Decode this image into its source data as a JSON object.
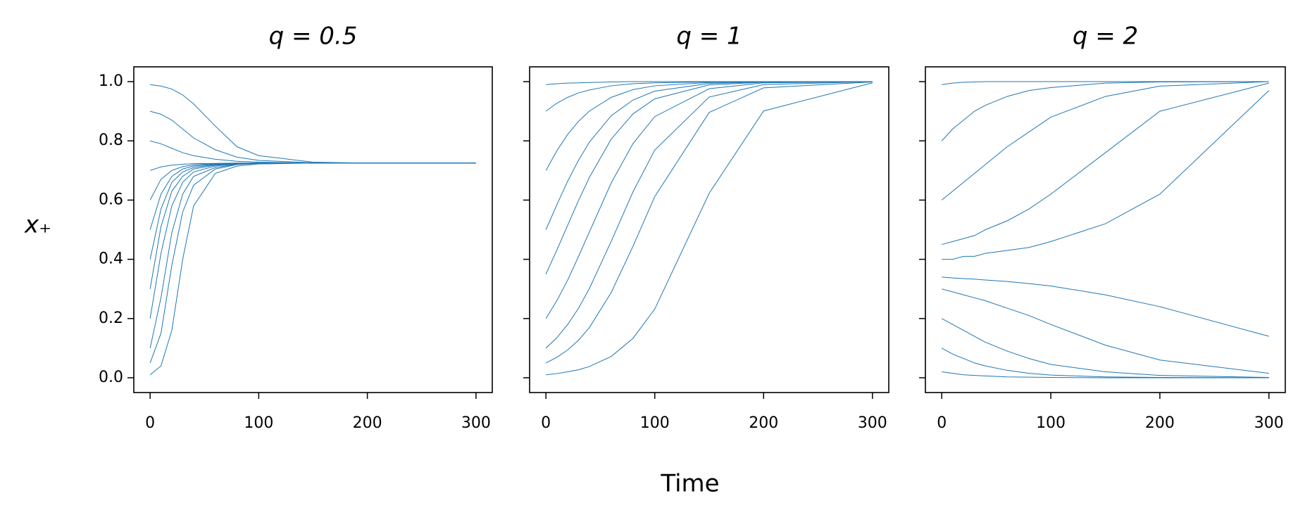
{
  "xlabel": "Time",
  "ylabel": "x₊",
  "chart_data": [
    {
      "type": "line",
      "title": "q = 0.5",
      "color": "#1f77b4",
      "x": [
        0,
        10,
        20,
        30,
        40,
        60,
        80,
        100,
        150,
        200,
        300
      ],
      "xlim": [
        -15,
        315
      ],
      "xticks": [
        0,
        100,
        200,
        300
      ],
      "ylim": [
        -0.05,
        1.05
      ],
      "yticks": [
        {
          "value": 0,
          "label": "0.0"
        },
        0.2,
        0.4,
        0.6,
        0.8,
        {
          "value": 1,
          "label": "1.0"
        }
      ],
      "series": [
        {
          "values": [
            0.01,
            0.04,
            0.16,
            0.4,
            0.58,
            0.69,
            0.715,
            0.722,
            0.725,
            0.725,
            0.725
          ]
        },
        {
          "values": [
            0.05,
            0.15,
            0.38,
            0.56,
            0.65,
            0.705,
            0.72,
            0.724,
            0.725,
            0.725,
            0.725
          ]
        },
        {
          "values": [
            0.1,
            0.27,
            0.49,
            0.62,
            0.68,
            0.71,
            0.721,
            0.724,
            0.725,
            0.725,
            0.725
          ]
        },
        {
          "values": [
            0.2,
            0.42,
            0.58,
            0.66,
            0.695,
            0.715,
            0.722,
            0.724,
            0.725,
            0.725,
            0.725
          ]
        },
        {
          "values": [
            0.3,
            0.51,
            0.63,
            0.68,
            0.705,
            0.718,
            0.723,
            0.724,
            0.725,
            0.725,
            0.725
          ]
        },
        {
          "values": [
            0.4,
            0.57,
            0.66,
            0.695,
            0.71,
            0.72,
            0.723,
            0.724,
            0.725,
            0.725,
            0.725
          ]
        },
        {
          "values": [
            0.5,
            0.62,
            0.68,
            0.705,
            0.715,
            0.721,
            0.724,
            0.725,
            0.725,
            0.725,
            0.725
          ]
        },
        {
          "values": [
            0.6,
            0.67,
            0.7,
            0.713,
            0.719,
            0.723,
            0.724,
            0.725,
            0.725,
            0.725,
            0.725
          ]
        },
        {
          "values": [
            0.7,
            0.712,
            0.718,
            0.721,
            0.723,
            0.724,
            0.725,
            0.725,
            0.725,
            0.725,
            0.725
          ]
        },
        {
          "values": [
            0.8,
            0.79,
            0.775,
            0.76,
            0.75,
            0.738,
            0.731,
            0.728,
            0.725,
            0.725,
            0.725
          ]
        },
        {
          "values": [
            0.9,
            0.89,
            0.87,
            0.84,
            0.81,
            0.77,
            0.745,
            0.734,
            0.726,
            0.725,
            0.725
          ]
        },
        {
          "values": [
            0.99,
            0.985,
            0.975,
            0.955,
            0.925,
            0.85,
            0.78,
            0.75,
            0.728,
            0.725,
            0.725
          ]
        }
      ]
    },
    {
      "type": "line",
      "title": "q = 1",
      "color": "#1f77b4",
      "x": [
        0,
        10,
        20,
        30,
        40,
        60,
        80,
        100,
        150,
        200,
        300
      ],
      "xlim": [
        -15,
        315
      ],
      "xticks": [
        0,
        100,
        200,
        300
      ],
      "ylim": [
        -0.05,
        1.05
      ],
      "series": [
        {
          "values": [
            0.01,
            0.014,
            0.02,
            0.027,
            0.038,
            0.072,
            0.133,
            0.232,
            0.623,
            0.901,
            0.996
          ]
        },
        {
          "values": [
            0.05,
            0.069,
            0.094,
            0.127,
            0.17,
            0.288,
            0.444,
            0.612,
            0.896,
            0.979,
            0.999
          ]
        },
        {
          "values": [
            0.1,
            0.135,
            0.18,
            0.235,
            0.302,
            0.461,
            0.628,
            0.769,
            0.948,
            0.99,
            1
          ]
        },
        {
          "values": [
            0.2,
            0.26,
            0.33,
            0.41,
            0.493,
            0.658,
            0.791,
            0.882,
            0.976,
            0.996,
            1
          ]
        },
        {
          "values": [
            0.35,
            0.431,
            0.515,
            0.599,
            0.677,
            0.806,
            0.891,
            0.942,
            0.989,
            0.998,
            1
          ]
        },
        {
          "values": [
            0.5,
            0.584,
            0.664,
            0.735,
            0.796,
            0.885,
            0.938,
            0.968,
            0.994,
            0.999,
            1
          ]
        },
        {
          "values": [
            0.7,
            0.766,
            0.822,
            0.866,
            0.901,
            0.947,
            0.973,
            0.986,
            0.997,
            1,
            1
          ]
        },
        {
          "values": [
            0.9,
            0.927,
            0.947,
            0.962,
            0.972,
            0.986,
            0.993,
            0.996,
            0.999,
            1,
            1
          ]
        },
        {
          "values": [
            0.99,
            0.993,
            0.995,
            0.996,
            0.997,
            0.999,
            1,
            1,
            1,
            1,
            1
          ]
        }
      ]
    },
    {
      "type": "line",
      "title": "q = 2",
      "color": "#1f77b4",
      "x": [
        0,
        10,
        20,
        30,
        40,
        60,
        80,
        100,
        150,
        200,
        300
      ],
      "xlim": [
        -15,
        315
      ],
      "xticks": [
        0,
        100,
        200,
        300
      ],
      "ylim": [
        -0.05,
        1.05
      ],
      "series": [
        {
          "values": [
            0.99,
            0.995,
            0.998,
            0.999,
            1,
            1,
            1,
            1,
            1,
            1,
            1
          ]
        },
        {
          "values": [
            0.8,
            0.84,
            0.87,
            0.9,
            0.92,
            0.95,
            0.97,
            0.98,
            0.995,
            0.999,
            1
          ]
        },
        {
          "values": [
            0.6,
            0.63,
            0.66,
            0.69,
            0.72,
            0.78,
            0.83,
            0.88,
            0.95,
            0.985,
            1
          ]
        },
        {
          "values": [
            0.45,
            0.46,
            0.47,
            0.48,
            0.5,
            0.53,
            0.57,
            0.62,
            0.76,
            0.9,
            0.995
          ]
        },
        {
          "values": [
            0.4,
            0.4,
            0.41,
            0.41,
            0.42,
            0.43,
            0.44,
            0.46,
            0.52,
            0.62,
            0.97
          ]
        },
        {
          "values": [
            0.34,
            0.337,
            0.335,
            0.333,
            0.33,
            0.325,
            0.318,
            0.31,
            0.28,
            0.24,
            0.14
          ]
        },
        {
          "values": [
            0.3,
            0.29,
            0.28,
            0.27,
            0.26,
            0.235,
            0.21,
            0.18,
            0.11,
            0.06,
            0.015
          ]
        },
        {
          "values": [
            0.2,
            0.18,
            0.16,
            0.14,
            0.12,
            0.09,
            0.065,
            0.045,
            0.02,
            0.008,
            0.001
          ]
        },
        {
          "values": [
            0.1,
            0.08,
            0.065,
            0.05,
            0.04,
            0.025,
            0.015,
            0.009,
            0.003,
            0.001,
            0
          ]
        },
        {
          "values": [
            0.02,
            0.015,
            0.01,
            0.008,
            0.006,
            0.003,
            0.002,
            0.001,
            0,
            0,
            0
          ]
        }
      ]
    }
  ]
}
